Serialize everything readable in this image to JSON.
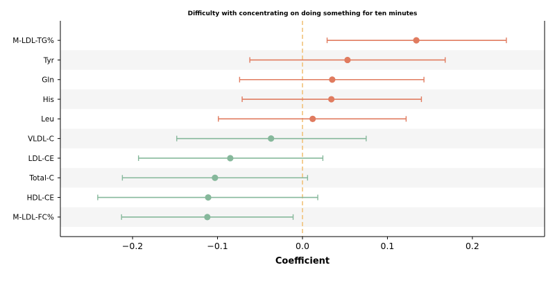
{
  "chart_data": {
    "type": "forest",
    "title": "Difficulty with concentrating on doing something for ten minutes",
    "xlabel": "Coefficient",
    "ylabel": "",
    "xlim": [
      -0.285,
      0.285
    ],
    "xticks": [
      -0.2,
      -0.1,
      0.0,
      0.1,
      0.2
    ],
    "xtick_labels": [
      "−0.2",
      "−0.1",
      "0.0",
      "0.1",
      "0.2"
    ],
    "reference_line": {
      "x": 0,
      "style": "dashed",
      "color": "#f2c27a"
    },
    "grid": false,
    "colors": {
      "positive": "#e07b5f",
      "negative": "#86b89b",
      "band": "#f5f5f5"
    },
    "rows": [
      {
        "label": "M-LDL-TG%",
        "estimate": 0.134,
        "ci_low": 0.029,
        "ci_high": 0.24
      },
      {
        "label": "Tyr",
        "estimate": 0.053,
        "ci_low": -0.062,
        "ci_high": 0.168
      },
      {
        "label": "Gln",
        "estimate": 0.035,
        "ci_low": -0.074,
        "ci_high": 0.143
      },
      {
        "label": "His",
        "estimate": 0.034,
        "ci_low": -0.071,
        "ci_high": 0.14
      },
      {
        "label": "Leu",
        "estimate": 0.012,
        "ci_low": -0.099,
        "ci_high": 0.122
      },
      {
        "label": "VLDL-C",
        "estimate": -0.037,
        "ci_low": -0.148,
        "ci_high": 0.075
      },
      {
        "label": "LDL-CE",
        "estimate": -0.085,
        "ci_low": -0.193,
        "ci_high": 0.024
      },
      {
        "label": "Total-C",
        "estimate": -0.103,
        "ci_low": -0.212,
        "ci_high": 0.006
      },
      {
        "label": "HDL-CE",
        "estimate": -0.111,
        "ci_low": -0.241,
        "ci_high": 0.018
      },
      {
        "label": "M-LDL-FC%",
        "estimate": -0.112,
        "ci_low": -0.213,
        "ci_high": -0.011
      }
    ]
  }
}
